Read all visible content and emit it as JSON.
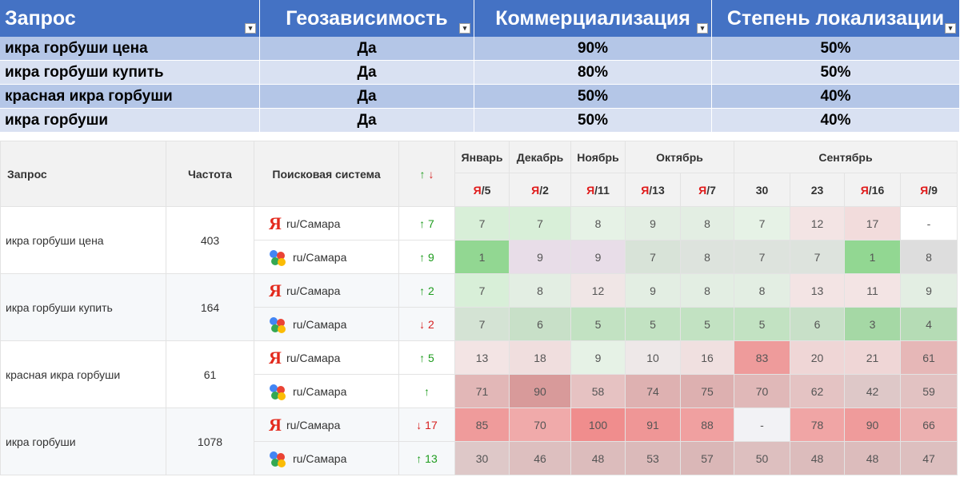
{
  "top_table": {
    "headers": [
      "Запрос",
      "Геозависимость",
      "Коммерциализация",
      "Степень локализации"
    ],
    "filter_icons": [
      "▾",
      "▾",
      "▾",
      "▾"
    ],
    "rows": [
      [
        "икра горбуши цена",
        "Да",
        "90%",
        "50%"
      ],
      [
        "икра горбуши купить",
        "Да",
        "80%",
        "50%"
      ],
      [
        "красная икра горбуши",
        "Да",
        "50%",
        "40%"
      ],
      [
        "икра горбуши",
        "Да",
        "50%",
        "40%"
      ]
    ]
  },
  "positions": {
    "headers": {
      "query": "Запрос",
      "frequency": "Частота",
      "engine": "Поисковая система",
      "arrow_up": "↑",
      "arrow_down": "↓"
    },
    "months": [
      {
        "name": "Январь",
        "cols": 1
      },
      {
        "name": "Декабрь",
        "cols": 1
      },
      {
        "name": "Ноябрь",
        "cols": 1
      },
      {
        "name": "Октябрь",
        "cols": 2
      },
      {
        "name": "Сентябрь",
        "cols": 4
      }
    ],
    "dates": [
      {
        "ya": true,
        "num": "/5"
      },
      {
        "ya": true,
        "num": "/2"
      },
      {
        "ya": true,
        "num": "/11"
      },
      {
        "ya": true,
        "num": "/13"
      },
      {
        "ya": true,
        "num": "/7"
      },
      {
        "ya": false,
        "num": "30"
      },
      {
        "ya": false,
        "num": "23"
      },
      {
        "ya": true,
        "num": "/16"
      },
      {
        "ya": true,
        "num": "/9"
      }
    ],
    "ya_letter": "Я",
    "region": "ru/Самара",
    "groups": [
      {
        "query": "икра горбуши цена",
        "freq": "403",
        "rows": [
          {
            "engine": "yandex",
            "dir": "up",
            "change": "7",
            "values": [
              "7",
              "7",
              "8",
              "9",
              "8",
              "7",
              "12",
              "17",
              "-"
            ]
          },
          {
            "engine": "google",
            "dir": "up",
            "change": "9",
            "values": [
              "1",
              "9",
              "9",
              "7",
              "8",
              "7",
              "7",
              "1",
              "8"
            ]
          }
        ]
      },
      {
        "query": "икра горбуши купить",
        "freq": "164",
        "rows": [
          {
            "engine": "yandex",
            "dir": "up",
            "change": "2",
            "values": [
              "7",
              "8",
              "12",
              "9",
              "8",
              "8",
              "13",
              "11",
              "9"
            ]
          },
          {
            "engine": "google",
            "dir": "down",
            "change": "2",
            "values": [
              "7",
              "6",
              "5",
              "5",
              "5",
              "5",
              "6",
              "3",
              "4"
            ]
          }
        ]
      },
      {
        "query": "красная икра горбуши",
        "freq": "61",
        "rows": [
          {
            "engine": "yandex",
            "dir": "up",
            "change": "5",
            "values": [
              "13",
              "18",
              "9",
              "10",
              "16",
              "83",
              "20",
              "21",
              "61"
            ]
          },
          {
            "engine": "google",
            "dir": "up",
            "change": "",
            "values": [
              "71",
              "90",
              "58",
              "74",
              "75",
              "70",
              "62",
              "42",
              "59"
            ]
          }
        ]
      },
      {
        "query": "икра горбуши",
        "freq": "1078",
        "rows": [
          {
            "engine": "yandex",
            "dir": "down",
            "change": "17",
            "values": [
              "85",
              "70",
              "100",
              "91",
              "88",
              "-",
              "78",
              "90",
              "66"
            ]
          },
          {
            "engine": "google",
            "dir": "up",
            "change": "13",
            "values": [
              "30",
              "46",
              "48",
              "53",
              "57",
              "50",
              "48",
              "48",
              "47"
            ]
          }
        ]
      }
    ],
    "cell_colors": [
      [
        "#d8efd8",
        "#d8efd8",
        "#e6f2e6",
        "#e3eee3",
        "#e3eee3",
        "#e6f2e6",
        "#f3e4e4",
        "#f2dcdc",
        "#ffffff"
      ],
      [
        "#92d792",
        "#e8dde8",
        "#e8dde8",
        "#d8e3d8",
        "#dde3dd",
        "#dde3dd",
        "#dde3dd",
        "#92d792",
        "#dddddd"
      ],
      [
        "#d8efd8",
        "#e3eee3",
        "#f0e6e6",
        "#e3eee3",
        "#e3eee3",
        "#e3eee3",
        "#f3e4e4",
        "#f3e4e4",
        "#e3eee3"
      ],
      [
        "#d4e3d4",
        "#c8e0c8",
        "#c2e2c2",
        "#c2e2c2",
        "#c2e2c2",
        "#c2e2c2",
        "#c8e0c8",
        "#a5d8a5",
        "#b5dcb5"
      ],
      [
        "#f3e4e4",
        "#f0dede",
        "#e6f2e6",
        "#eee8e8",
        "#f0e0e0",
        "#ee9b9b",
        "#efd6d6",
        "#efd6d6",
        "#e6b7b7"
      ],
      [
        "#e2b7b7",
        "#d89a9a",
        "#e6c2c2",
        "#deb1b1",
        "#ddb0b0",
        "#e0b8b8",
        "#e4c3c3",
        "#dec8c8",
        "#e2c2c2"
      ],
      [
        "#ef9b9b",
        "#f0aaaa",
        "#f08d8d",
        "#ef9696",
        "#f0a0a0",
        "#f2f2f5",
        "#f0a5a5",
        "#ef9b9b",
        "#ecb0b0"
      ],
      [
        "#dec8c8",
        "#ddbfbf",
        "#dcbcbc",
        "#dbbaba",
        "#dab7b7",
        "#ddbfbf",
        "#dcbcbc",
        "#dcbcbc",
        "#ddbfbf"
      ]
    ]
  }
}
